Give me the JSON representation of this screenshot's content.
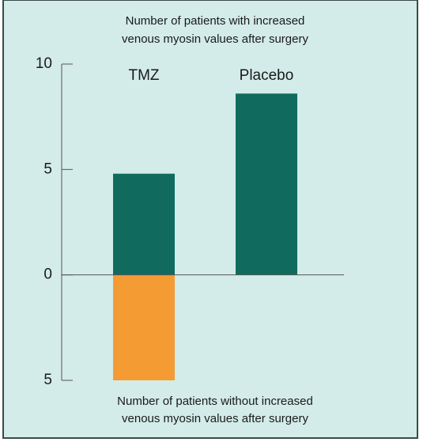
{
  "chart_data": {
    "type": "bar",
    "title": [
      "Number of patients with increased",
      "venous myosin values after surgery"
    ],
    "annotation": [
      "Number of patients without increased",
      "venous myosin values after surgery"
    ],
    "categories": [
      "TMZ",
      "Placebo"
    ],
    "series": [
      {
        "color": "#106b5e",
        "values": [
          4.8,
          8.6
        ]
      },
      {
        "color": "#f59b34",
        "values": [
          -5,
          null
        ]
      }
    ],
    "ylim": [
      -5,
      10
    ],
    "yticks": [
      10,
      5,
      0,
      {
        "value": -5,
        "label": "5"
      }
    ]
  }
}
